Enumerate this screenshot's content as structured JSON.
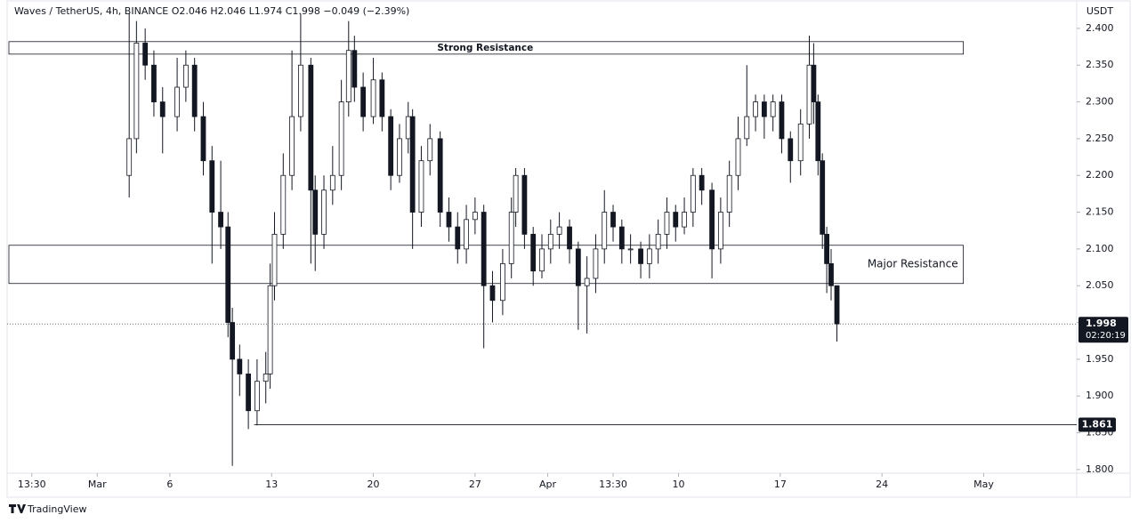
{
  "chart_data": {
    "type": "candlestick",
    "title": "Waves / TetherUS, 4h, BINANCE  O2.046  H2.046  L1.974  C1.998  −0.049 (−2.39%)",
    "currency_label": "USDT",
    "x": [
      3.2,
      3.7,
      4.3,
      4.9,
      5.5,
      6.5,
      7.1,
      7.7,
      8.3,
      8.9,
      9.5,
      10.0,
      10.3,
      10.8,
      11.4,
      12.0,
      12.6,
      12.9,
      13.2,
      13.8,
      14.4,
      15.0,
      15.7,
      16.0,
      16.6,
      17.2,
      17.8,
      18.3,
      18.7,
      19.3,
      20.0,
      20.6,
      21.2,
      21.8,
      22.4,
      22.7,
      23.3,
      23.9,
      24.6,
      25.2,
      25.8,
      26.4,
      27.0,
      27.6,
      28.2,
      28.9,
      29.5,
      29.8,
      30.4,
      31.0,
      31.6,
      32.2,
      32.8,
      33.5,
      34.1,
      34.7,
      35.3,
      35.9,
      36.5,
      37.1,
      37.7,
      38.4,
      39.0,
      39.6,
      40.2,
      40.8,
      41.4,
      42.0,
      42.6,
      43.3,
      43.9,
      44.5,
      45.1,
      45.7,
      46.3,
      46.9,
      47.5,
      48.1,
      48.7,
      49.4,
      50.0,
      50.3,
      50.6,
      50.9,
      51.2,
      51.5,
      51.9
    ],
    "open": [
      2.2,
      2.25,
      2.38,
      2.35,
      2.3,
      2.28,
      2.32,
      2.35,
      2.28,
      2.22,
      2.15,
      2.13,
      2.0,
      1.95,
      1.93,
      1.88,
      1.92,
      1.93,
      2.05,
      2.12,
      2.2,
      2.28,
      2.35,
      2.18,
      2.12,
      2.18,
      2.2,
      2.3,
      2.37,
      2.32,
      2.28,
      2.33,
      2.28,
      2.2,
      2.25,
      2.28,
      2.15,
      2.22,
      2.25,
      2.15,
      2.13,
      2.1,
      2.14,
      2.15,
      2.05,
      2.03,
      2.08,
      2.15,
      2.2,
      2.12,
      2.07,
      2.1,
      2.12,
      2.13,
      2.1,
      2.05,
      2.06,
      2.1,
      2.15,
      2.13,
      2.1,
      2.1,
      2.08,
      2.1,
      2.12,
      2.15,
      2.13,
      2.15,
      2.2,
      2.18,
      2.1,
      2.15,
      2.2,
      2.25,
      2.28,
      2.3,
      2.28,
      2.3,
      2.25,
      2.22,
      2.27,
      2.35,
      2.3,
      2.22,
      2.12,
      2.08,
      2.05
    ],
    "high": [
      2.42,
      2.41,
      2.4,
      2.37,
      2.32,
      2.36,
      2.37,
      2.36,
      2.3,
      2.24,
      2.22,
      2.15,
      2.02,
      1.97,
      1.95,
      1.95,
      1.96,
      2.08,
      2.15,
      2.23,
      2.37,
      2.42,
      2.36,
      2.2,
      2.2,
      2.24,
      2.33,
      2.41,
      2.39,
      2.34,
      2.36,
      2.34,
      2.29,
      2.27,
      2.3,
      2.29,
      2.24,
      2.27,
      2.26,
      2.17,
      2.15,
      2.16,
      2.17,
      2.16,
      2.07,
      2.1,
      2.17,
      2.21,
      2.21,
      2.13,
      2.12,
      2.14,
      2.15,
      2.14,
      2.11,
      2.09,
      2.12,
      2.18,
      2.16,
      2.14,
      2.12,
      2.11,
      2.12,
      2.14,
      2.17,
      2.16,
      2.17,
      2.21,
      2.21,
      2.19,
      2.17,
      2.22,
      2.28,
      2.35,
      2.31,
      2.31,
      2.31,
      2.31,
      2.26,
      2.29,
      2.39,
      2.38,
      2.31,
      2.23,
      2.13,
      2.1,
      2.046
    ],
    "low": [
      2.17,
      2.23,
      2.33,
      2.28,
      2.23,
      2.26,
      2.3,
      2.26,
      2.2,
      2.08,
      2.1,
      1.98,
      1.805,
      1.9,
      1.855,
      1.86,
      1.89,
      1.91,
      2.03,
      2.1,
      2.18,
      2.26,
      2.08,
      2.07,
      2.1,
      2.16,
      2.18,
      2.28,
      2.3,
      2.26,
      2.27,
      2.26,
      2.18,
      2.19,
      2.23,
      2.1,
      2.13,
      2.2,
      2.13,
      2.11,
      2.08,
      2.08,
      2.12,
      1.965,
      2.0,
      2.01,
      2.06,
      2.13,
      2.1,
      2.05,
      2.06,
      2.08,
      2.1,
      2.08,
      1.99,
      1.985,
      2.04,
      2.08,
      2.11,
      2.08,
      2.08,
      2.06,
      2.06,
      2.08,
      2.1,
      2.11,
      2.12,
      2.13,
      2.16,
      2.06,
      2.08,
      2.13,
      2.18,
      2.24,
      2.26,
      2.25,
      2.26,
      2.23,
      2.19,
      2.2,
      2.25,
      2.27,
      2.2,
      2.1,
      2.04,
      2.03,
      1.974
    ],
    "close": [
      2.25,
      2.38,
      2.35,
      2.3,
      2.28,
      2.32,
      2.35,
      2.28,
      2.22,
      2.15,
      2.13,
      2.0,
      1.95,
      1.93,
      1.88,
      1.92,
      1.93,
      2.05,
      2.12,
      2.2,
      2.28,
      2.35,
      2.18,
      2.12,
      2.18,
      2.2,
      2.3,
      2.37,
      2.32,
      2.28,
      2.33,
      2.28,
      2.2,
      2.25,
      2.28,
      2.15,
      2.22,
      2.25,
      2.15,
      2.13,
      2.1,
      2.14,
      2.15,
      2.05,
      2.03,
      2.08,
      2.15,
      2.2,
      2.12,
      2.07,
      2.1,
      2.12,
      2.13,
      2.1,
      2.05,
      2.06,
      2.1,
      2.15,
      2.13,
      2.1,
      2.1,
      2.08,
      2.1,
      2.12,
      2.15,
      2.13,
      2.15,
      2.2,
      2.18,
      2.1,
      2.15,
      2.2,
      2.25,
      2.28,
      2.3,
      2.28,
      2.3,
      2.25,
      2.22,
      2.27,
      2.35,
      2.3,
      2.22,
      2.12,
      2.08,
      2.05,
      1.998
    ],
    "up_color": "#ffffff",
    "down_color": "#131722",
    "xlim": [
      -5.2,
      68.4
    ],
    "xticks": [
      {
        "value": -3.5,
        "label": "13:30"
      },
      {
        "value": 1,
        "label": "Mar"
      },
      6,
      13,
      20,
      27,
      {
        "value": 32,
        "label": "Apr"
      },
      {
        "value": 36.5,
        "label": "13:30"
      },
      {
        "value": 41,
        "label": "10"
      },
      {
        "value": 48,
        "label": "17"
      },
      {
        "value": 55,
        "label": "24"
      },
      {
        "value": 62,
        "label": "May"
      }
    ],
    "ylim": [
      1.795,
      2.4374
    ],
    "yticks": [
      {
        "value": 1.8,
        "label": "1.800"
      },
      {
        "value": 1.85,
        "label": "1.850"
      },
      {
        "value": 1.9,
        "label": "1.900"
      },
      {
        "value": 1.95,
        "label": "1.950"
      },
      {
        "value": 2.0,
        "label": "2.000"
      },
      {
        "value": 2.05,
        "label": "2.050"
      },
      {
        "value": 2.1,
        "label": "2.100"
      },
      {
        "value": 2.15,
        "label": "2.150"
      },
      {
        "value": 2.2,
        "label": "2.200"
      },
      {
        "value": 2.25,
        "label": "2.250"
      },
      {
        "value": 2.3,
        "label": "2.300"
      },
      {
        "value": 2.35,
        "label": "2.350"
      },
      {
        "value": 2.4,
        "label": "2.400"
      }
    ],
    "grid": false,
    "zones": [
      {
        "label": "Strong Resistance",
        "ymin": 2.365,
        "ymax": 2.382,
        "x_end": 60.6,
        "label_position": "center"
      },
      {
        "label": "Major Resistance",
        "ymin": 2.053,
        "ymax": 2.105,
        "x_end": 60.6,
        "label_position": "right"
      }
    ],
    "support": {
      "value": 1.861,
      "x_start": 11.8
    },
    "last_price": {
      "value": 1.998,
      "countdown": "02:20:19"
    }
  },
  "branding": "TradingView"
}
